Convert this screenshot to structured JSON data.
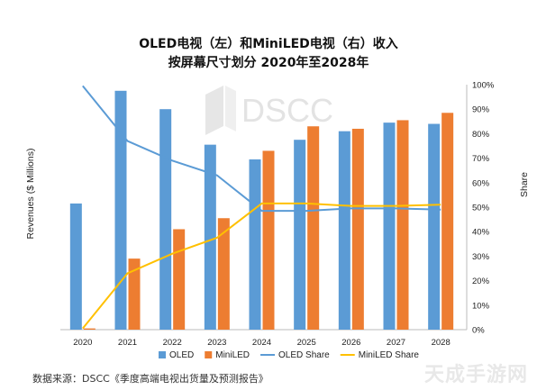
{
  "title_line1": "OLED电视（左）和MiniLED电视（右）收入",
  "title_line2": "按屏幕尺寸划分 2020年至2028年",
  "logo_text": "DSCC",
  "source_note": "数据来源：DSCC《季度高端电视出货量及预测报告》",
  "watermark_text": "天成手游网",
  "chart_data": {
    "type": "bar",
    "categories": [
      "2020",
      "2021",
      "2022",
      "2023",
      "2024",
      "2025",
      "2026",
      "2027",
      "2028"
    ],
    "ylabel": "Revenues ($ Millions)",
    "y2label": "Share",
    "y2lim": [
      0,
      100
    ],
    "y2ticks": [
      "0%",
      "10%",
      "20%",
      "30%",
      "40%",
      "50%",
      "60%",
      "70%",
      "80%",
      "90%",
      "100%"
    ],
    "series": [
      {
        "name": "OLED",
        "kind": "bar",
        "color": "#5B9BD5",
        "values": [
          51.5,
          97.5,
          90,
          75.5,
          69.5,
          77.5,
          81,
          84.5,
          84
        ]
      },
      {
        "name": "MiniLED",
        "kind": "bar",
        "color": "#ED7D31",
        "values": [
          0.5,
          29,
          41,
          45.5,
          73,
          83,
          82,
          85.5,
          88.5
        ]
      },
      {
        "name": "OLED Share",
        "kind": "line",
        "color": "#5B9BD5",
        "values": [
          99.5,
          77,
          69,
          63,
          48.5,
          48.5,
          49.5,
          49.5,
          49
        ]
      },
      {
        "name": "MiniLED Share",
        "kind": "line",
        "color": "#FFC000",
        "values": [
          0.5,
          23,
          31,
          37.5,
          51.5,
          51.5,
          50.5,
          50.5,
          51
        ]
      }
    ],
    "legend_position": "bottom",
    "grid": false
  }
}
